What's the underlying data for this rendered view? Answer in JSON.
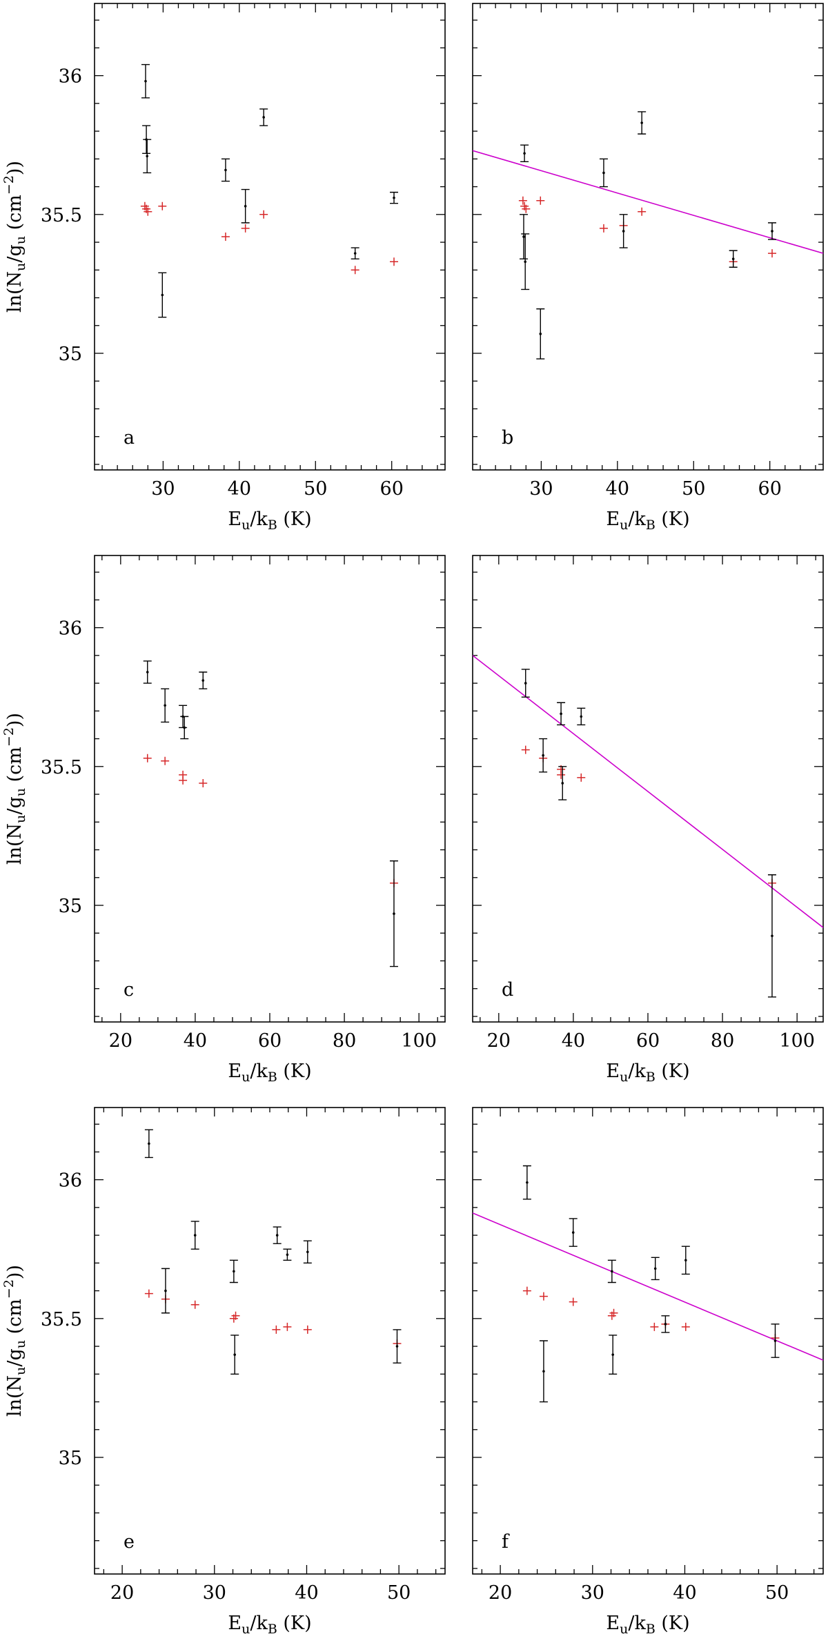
{
  "colors": {
    "frame": "#000000",
    "errorbar": "#000000",
    "model": "#d62728",
    "fit": "#cc00cc"
  },
  "chart_data": [
    {
      "id": "a",
      "type": "scatter",
      "panel_label": "a",
      "xlabel_main": "E",
      "xlabel_sub1": "u",
      "xlabel_mid": "/k",
      "xlabel_sub2": "B",
      "xlabel_tail": " (K)",
      "ylabel_main": "ln(N",
      "ylabel_sub1": "u",
      "ylabel_mid": "/g",
      "ylabel_sub2": "u",
      "ylabel_unit": " (cm",
      "ylabel_sup": "−2",
      "ylabel_tail": "))",
      "xlim": [
        21,
        67
      ],
      "ylim": [
        34.58,
        36.26
      ],
      "xticks_major": [
        30,
        40,
        50,
        60
      ],
      "xtick_labels": [
        "30",
        "40",
        "50",
        "60"
      ],
      "xtick_minor_step": 2,
      "yticks_major": [
        35,
        35.5,
        36
      ],
      "ytick_labels": [
        "35",
        "35.5",
        "36"
      ],
      "ytick_minor_step": 0.1,
      "observed": [
        {
          "x": 27.7,
          "y": 35.98,
          "err": 0.06
        },
        {
          "x": 27.8,
          "y": 35.77,
          "err": 0.05
        },
        {
          "x": 27.9,
          "y": 35.71,
          "err": 0.06
        },
        {
          "x": 29.9,
          "y": 35.21,
          "err": 0.08
        },
        {
          "x": 38.2,
          "y": 35.66,
          "err": 0.04
        },
        {
          "x": 40.8,
          "y": 35.53,
          "err": 0.06
        },
        {
          "x": 43.2,
          "y": 35.85,
          "err": 0.03
        },
        {
          "x": 55.2,
          "y": 35.36,
          "err": 0.02
        },
        {
          "x": 60.3,
          "y": 35.56,
          "err": 0.02
        }
      ],
      "model": [
        {
          "x": 27.6,
          "y": 35.53
        },
        {
          "x": 27.8,
          "y": 35.52
        },
        {
          "x": 28.0,
          "y": 35.51
        },
        {
          "x": 29.9,
          "y": 35.53
        },
        {
          "x": 38.2,
          "y": 35.42
        },
        {
          "x": 40.8,
          "y": 35.45
        },
        {
          "x": 43.2,
          "y": 35.5
        },
        {
          "x": 55.2,
          "y": 35.3
        },
        {
          "x": 60.3,
          "y": 35.33
        }
      ],
      "fit": null
    },
    {
      "id": "b",
      "type": "scatter",
      "panel_label": "b",
      "xlabel_main": "E",
      "xlabel_sub1": "u",
      "xlabel_mid": "/k",
      "xlabel_sub2": "B",
      "xlabel_tail": " (K)",
      "xlim": [
        21,
        67
      ],
      "ylim": [
        34.58,
        36.26
      ],
      "xticks_major": [
        30,
        40,
        50,
        60
      ],
      "xtick_labels": [
        "30",
        "40",
        "50",
        "60"
      ],
      "xtick_minor_step": 2,
      "yticks_major": [
        35,
        35.5,
        36
      ],
      "ytick_labels": [],
      "ytick_minor_step": 0.1,
      "observed": [
        {
          "x": 27.8,
          "y": 35.72,
          "err": 0.03
        },
        {
          "x": 27.7,
          "y": 35.42,
          "err": 0.08
        },
        {
          "x": 27.9,
          "y": 35.33,
          "err": 0.1
        },
        {
          "x": 29.9,
          "y": 35.07,
          "err": 0.09
        },
        {
          "x": 38.2,
          "y": 35.65,
          "err": 0.05
        },
        {
          "x": 40.8,
          "y": 35.44,
          "err": 0.06
        },
        {
          "x": 43.2,
          "y": 35.83,
          "err": 0.04
        },
        {
          "x": 55.2,
          "y": 35.34,
          "err": 0.03
        },
        {
          "x": 60.3,
          "y": 35.44,
          "err": 0.03
        }
      ],
      "model": [
        {
          "x": 27.6,
          "y": 35.55
        },
        {
          "x": 27.8,
          "y": 35.53
        },
        {
          "x": 28.0,
          "y": 35.52
        },
        {
          "x": 29.9,
          "y": 35.55
        },
        {
          "x": 38.2,
          "y": 35.45
        },
        {
          "x": 40.8,
          "y": 35.46
        },
        {
          "x": 43.2,
          "y": 35.51
        },
        {
          "x": 55.2,
          "y": 35.33
        },
        {
          "x": 60.3,
          "y": 35.36
        }
      ],
      "fit": {
        "x": [
          21,
          67
        ],
        "y": [
          35.73,
          35.36
        ]
      }
    },
    {
      "id": "c",
      "type": "scatter",
      "panel_label": "c",
      "xlabel_main": "E",
      "xlabel_sub1": "u",
      "xlabel_mid": "/k",
      "xlabel_sub2": "B",
      "xlabel_tail": " (K)",
      "ylabel_main": "ln(N",
      "ylabel_sub1": "u",
      "ylabel_mid": "/g",
      "ylabel_sub2": "u",
      "ylabel_unit": " (cm",
      "ylabel_sup": "−2",
      "ylabel_tail": "))",
      "xlim": [
        13,
        107
      ],
      "ylim": [
        34.58,
        36.26
      ],
      "xticks_major": [
        20,
        40,
        60,
        80,
        100
      ],
      "xtick_labels": [
        "20",
        "40",
        "60",
        "80",
        "100"
      ],
      "xtick_minor_step": 5,
      "yticks_major": [
        35,
        35.5,
        36
      ],
      "ytick_labels": [
        "35",
        "35.5",
        "36"
      ],
      "ytick_minor_step": 0.1,
      "observed": [
        {
          "x": 27.2,
          "y": 35.84,
          "err": 0.04
        },
        {
          "x": 31.9,
          "y": 35.72,
          "err": 0.06
        },
        {
          "x": 36.7,
          "y": 35.68,
          "err": 0.04
        },
        {
          "x": 37.1,
          "y": 35.64,
          "err": 0.04
        },
        {
          "x": 42.1,
          "y": 35.81,
          "err": 0.03
        },
        {
          "x": 93.3,
          "y": 34.97,
          "err": 0.19
        }
      ],
      "model": [
        {
          "x": 27.2,
          "y": 35.53
        },
        {
          "x": 31.9,
          "y": 35.52
        },
        {
          "x": 36.7,
          "y": 35.47
        },
        {
          "x": 36.7,
          "y": 35.45
        },
        {
          "x": 42.1,
          "y": 35.44
        },
        {
          "x": 93.3,
          "y": 35.08
        }
      ],
      "fit": null
    },
    {
      "id": "d",
      "type": "scatter",
      "panel_label": "d",
      "xlabel_main": "E",
      "xlabel_sub1": "u",
      "xlabel_mid": "/k",
      "xlabel_sub2": "B",
      "xlabel_tail": " (K)",
      "xlim": [
        13,
        107
      ],
      "ylim": [
        34.58,
        36.26
      ],
      "xticks_major": [
        20,
        40,
        60,
        80,
        100
      ],
      "xtick_labels": [
        "20",
        "40",
        "60",
        "80",
        "100"
      ],
      "xtick_minor_step": 5,
      "yticks_major": [
        35,
        35.5,
        36
      ],
      "ytick_labels": [],
      "ytick_minor_step": 0.1,
      "observed": [
        {
          "x": 27.2,
          "y": 35.8,
          "err": 0.05
        },
        {
          "x": 31.9,
          "y": 35.54,
          "err": 0.06
        },
        {
          "x": 36.7,
          "y": 35.69,
          "err": 0.04
        },
        {
          "x": 37.1,
          "y": 35.44,
          "err": 0.06
        },
        {
          "x": 42.1,
          "y": 35.68,
          "err": 0.03
        },
        {
          "x": 93.3,
          "y": 34.89,
          "err": 0.22
        }
      ],
      "model": [
        {
          "x": 27.2,
          "y": 35.56
        },
        {
          "x": 31.9,
          "y": 35.53
        },
        {
          "x": 36.7,
          "y": 35.49
        },
        {
          "x": 36.7,
          "y": 35.47
        },
        {
          "x": 42.1,
          "y": 35.46
        },
        {
          "x": 93.3,
          "y": 35.08
        }
      ],
      "fit": {
        "x": [
          13,
          107
        ],
        "y": [
          35.9,
          34.92
        ]
      }
    },
    {
      "id": "e",
      "type": "scatter",
      "panel_label": "e",
      "xlabel_main": "E",
      "xlabel_sub1": "u",
      "xlabel_mid": "/k",
      "xlabel_sub2": "B",
      "xlabel_tail": " (K)",
      "ylabel_main": "ln(N",
      "ylabel_sub1": "u",
      "ylabel_mid": "/g",
      "ylabel_sub2": "u",
      "ylabel_unit": " (cm",
      "ylabel_sup": "−2",
      "ylabel_tail": "))",
      "xlim": [
        17,
        55
      ],
      "ylim": [
        34.58,
        36.26
      ],
      "xticks_major": [
        20,
        30,
        40,
        50
      ],
      "xtick_labels": [
        "20",
        "30",
        "40",
        "50"
      ],
      "xtick_minor_step": 2,
      "yticks_major": [
        35,
        35.5,
        36
      ],
      "ytick_labels": [
        "35",
        "35.5",
        "36"
      ],
      "ytick_minor_step": 0.1,
      "observed": [
        {
          "x": 22.9,
          "y": 36.13,
          "err": 0.05
        },
        {
          "x": 24.7,
          "y": 35.6,
          "err": 0.08
        },
        {
          "x": 27.9,
          "y": 35.8,
          "err": 0.05
        },
        {
          "x": 32.1,
          "y": 35.67,
          "err": 0.04
        },
        {
          "x": 32.2,
          "y": 35.37,
          "err": 0.07
        },
        {
          "x": 36.8,
          "y": 35.8,
          "err": 0.03
        },
        {
          "x": 37.9,
          "y": 35.73,
          "err": 0.02
        },
        {
          "x": 40.1,
          "y": 35.74,
          "err": 0.04
        },
        {
          "x": 49.8,
          "y": 35.4,
          "err": 0.06
        }
      ],
      "model": [
        {
          "x": 22.9,
          "y": 35.59
        },
        {
          "x": 24.7,
          "y": 35.57
        },
        {
          "x": 27.9,
          "y": 35.55
        },
        {
          "x": 32.1,
          "y": 35.5
        },
        {
          "x": 32.3,
          "y": 35.51
        },
        {
          "x": 36.7,
          "y": 35.46
        },
        {
          "x": 37.9,
          "y": 35.47
        },
        {
          "x": 40.1,
          "y": 35.46
        },
        {
          "x": 49.8,
          "y": 35.41
        }
      ],
      "fit": null
    },
    {
      "id": "f",
      "type": "scatter",
      "panel_label": "f",
      "xlabel_main": "E",
      "xlabel_sub1": "u",
      "xlabel_mid": "/k",
      "xlabel_sub2": "B",
      "xlabel_tail": " (K)",
      "xlim": [
        17,
        55
      ],
      "ylim": [
        34.58,
        36.26
      ],
      "xticks_major": [
        20,
        30,
        40,
        50
      ],
      "xtick_labels": [
        "20",
        "30",
        "40",
        "50"
      ],
      "xtick_minor_step": 2,
      "yticks_major": [
        35,
        35.5,
        36
      ],
      "ytick_labels": [],
      "ytick_minor_step": 0.1,
      "observed": [
        {
          "x": 22.9,
          "y": 35.99,
          "err": 0.06
        },
        {
          "x": 24.7,
          "y": 35.31,
          "err": 0.11
        },
        {
          "x": 27.9,
          "y": 35.81,
          "err": 0.05
        },
        {
          "x": 32.1,
          "y": 35.67,
          "err": 0.04
        },
        {
          "x": 32.2,
          "y": 35.37,
          "err": 0.07
        },
        {
          "x": 36.8,
          "y": 35.68,
          "err": 0.04
        },
        {
          "x": 37.9,
          "y": 35.48,
          "err": 0.03
        },
        {
          "x": 40.1,
          "y": 35.71,
          "err": 0.05
        },
        {
          "x": 49.8,
          "y": 35.42,
          "err": 0.06
        }
      ],
      "model": [
        {
          "x": 22.9,
          "y": 35.6
        },
        {
          "x": 24.7,
          "y": 35.58
        },
        {
          "x": 27.9,
          "y": 35.56
        },
        {
          "x": 32.1,
          "y": 35.51
        },
        {
          "x": 32.3,
          "y": 35.52
        },
        {
          "x": 36.7,
          "y": 35.47
        },
        {
          "x": 37.9,
          "y": 35.48
        },
        {
          "x": 40.1,
          "y": 35.47
        },
        {
          "x": 49.8,
          "y": 35.43
        }
      ],
      "fit": {
        "x": [
          17,
          55
        ],
        "y": [
          35.88,
          35.35
        ]
      }
    }
  ]
}
